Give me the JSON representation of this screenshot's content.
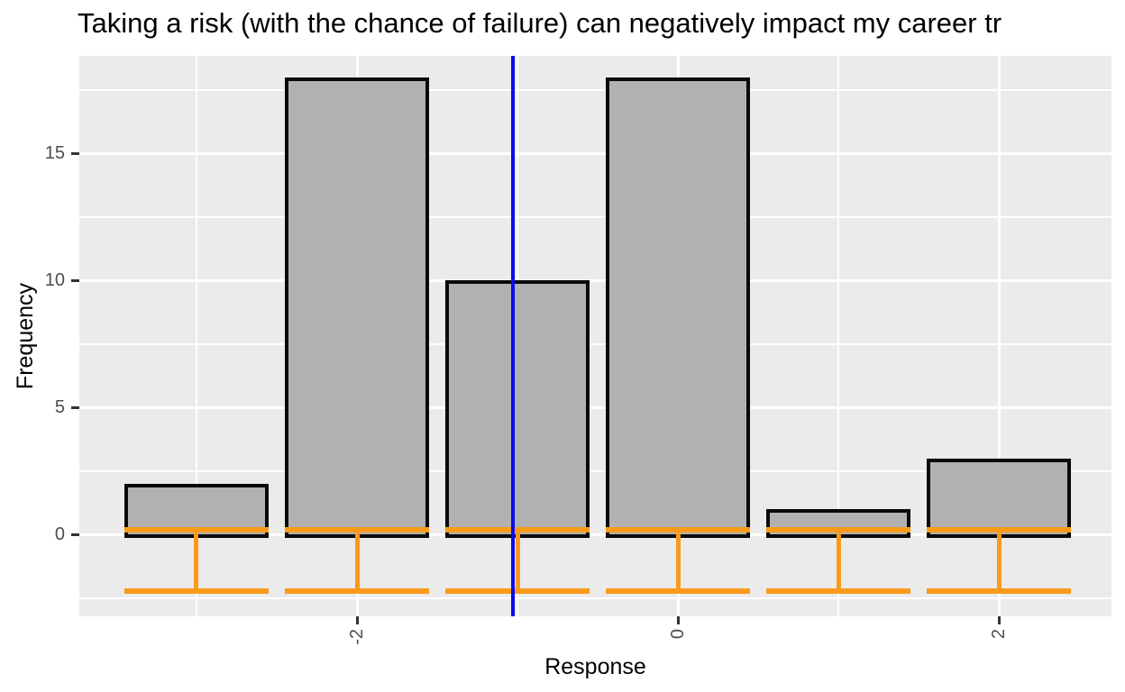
{
  "chart_data": {
    "type": "bar",
    "title": "Taking a risk (with the chance of failure) can negatively impact my career tr",
    "xlabel": "Response",
    "ylabel": "Frequency",
    "x": [
      -3,
      -2,
      -1,
      0,
      1,
      2
    ],
    "values": [
      2,
      18,
      10,
      18,
      1,
      3
    ],
    "bar_width": 0.9,
    "x_ticks": [
      -2,
      0,
      2
    ],
    "x_tick_labels": [
      "-2",
      "0",
      "2"
    ],
    "y_ticks": [
      0,
      5,
      10,
      15
    ],
    "y_tick_labels": [
      "0",
      "5",
      "10",
      "15"
    ],
    "x_minor": [
      -3,
      -1,
      1
    ],
    "y_minor": [
      -2.5,
      2.5,
      7.5,
      12.5,
      17.5
    ],
    "xlim": [
      -3.73,
      2.7
    ],
    "ylim": [
      -3.21,
      18.84
    ],
    "grid": true,
    "legend": "none",
    "vline_x": -1.03,
    "errorbar_overlay": {
      "cap_top_y": 0.19,
      "cap_bottom_y": -2.23
    },
    "colors": {
      "panel_bg": "#ebebeb",
      "grid": "#ffffff",
      "bar_fill": "#b1b1b1",
      "bar_border": "#0a0a0a",
      "orange": "#f99a1b",
      "blue": "#0b0bee",
      "axis_text": "#4d4d4d",
      "tick_mark": "#333333",
      "title_text": "#000000"
    }
  }
}
